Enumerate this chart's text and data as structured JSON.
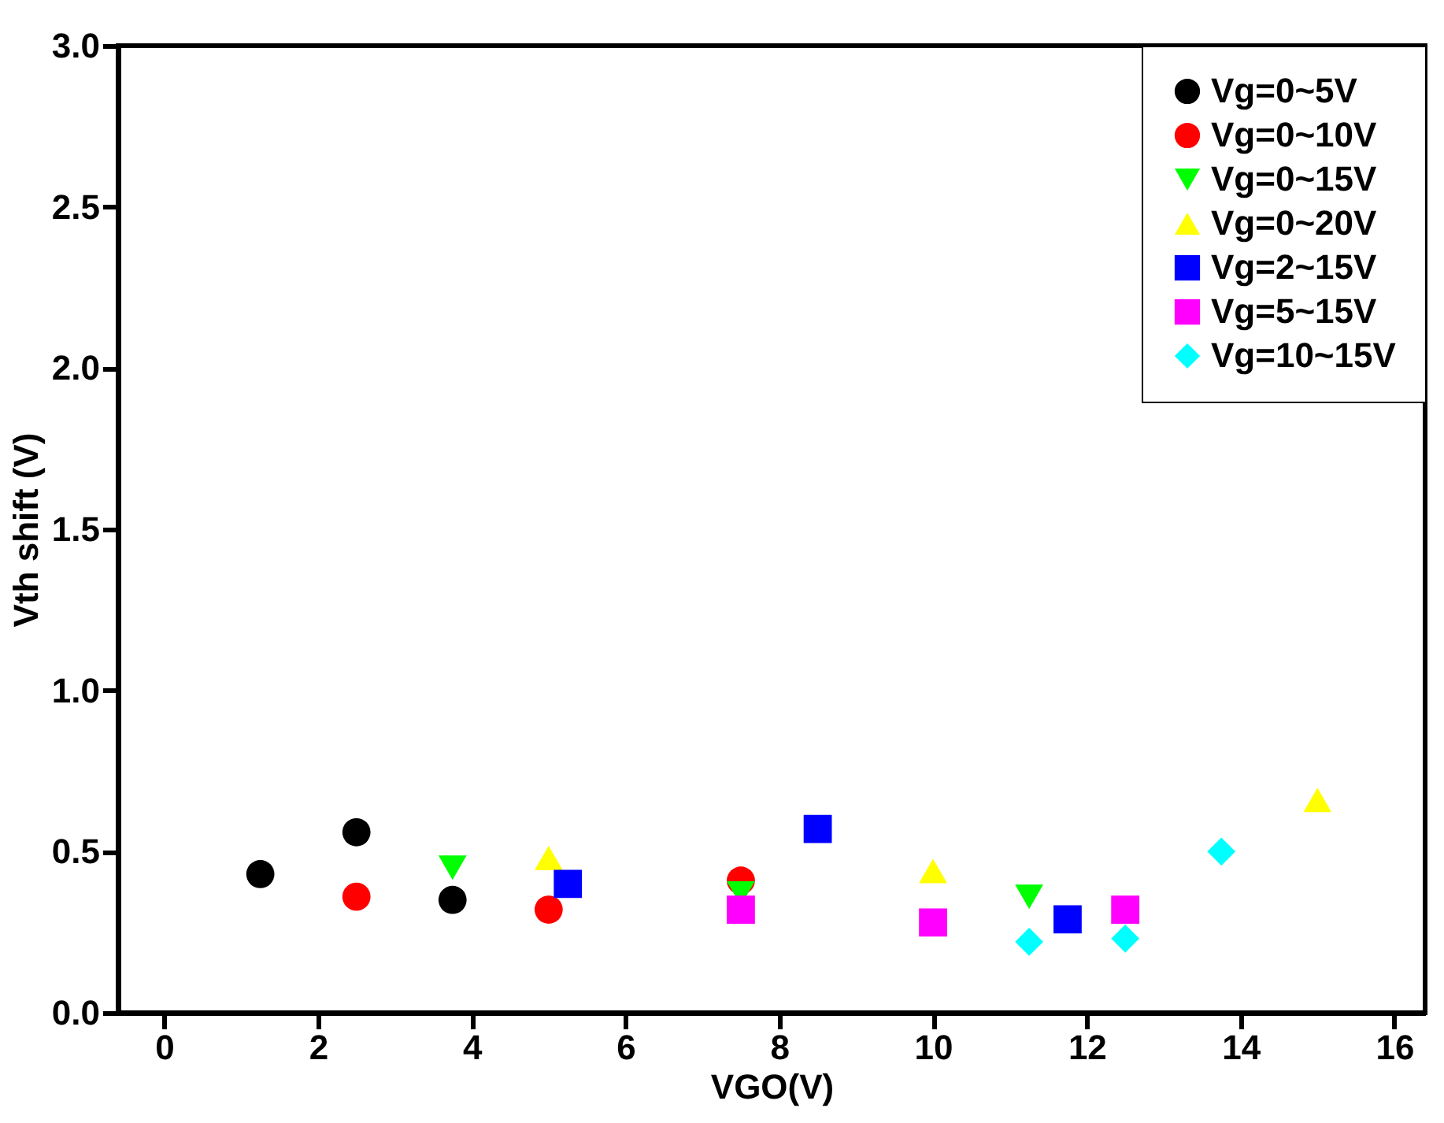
{
  "chart_data": {
    "type": "scatter",
    "xlabel": "VGO(V)",
    "ylabel": "Vth shift (V)",
    "xlim": [
      -0.6,
      16.4
    ],
    "xticks": [
      0,
      2,
      4,
      6,
      8,
      10,
      12,
      14,
      16
    ],
    "ylim": [
      0,
      3
    ],
    "yticks": [
      {
        "value": 0,
        "label": "0.0"
      },
      {
        "value": 0.5,
        "label": "0.5"
      },
      {
        "value": 1,
        "label": "1.0"
      },
      {
        "value": 1.5,
        "label": "1.5"
      },
      {
        "value": 2,
        "label": "2.0"
      },
      {
        "value": 2.5,
        "label": "2.5"
      },
      {
        "value": 3,
        "label": "3.0"
      }
    ],
    "legend": "top right",
    "series": [
      {
        "name": "Vg=0~5V",
        "color": "#000000",
        "marker": "circle",
        "x": [
          1.25,
          2.5,
          3.75
        ],
        "values": [
          0.43,
          0.56,
          0.35
        ]
      },
      {
        "name": "Vg=0~10V",
        "color": "#ff0000",
        "marker": "circle",
        "x": [
          2.5,
          5,
          7.5
        ],
        "values": [
          0.36,
          0.32,
          0.41
        ]
      },
      {
        "name": "Vg=0~15V",
        "color": "#00ff00",
        "marker": "triangle-down",
        "x": [
          3.75,
          7.5,
          11.25
        ],
        "values": [
          0.45,
          0.37,
          0.36
        ]
      },
      {
        "name": "Vg=0~20V",
        "color": "#ffff00",
        "marker": "triangle",
        "x": [
          5,
          10,
          15
        ],
        "values": [
          0.48,
          0.44,
          0.66
        ]
      },
      {
        "name": "Vg=2~15V",
        "color": "#0000ff",
        "marker": "square",
        "x": [
          5.25,
          8.5,
          11.75
        ],
        "values": [
          0.4,
          0.57,
          0.29
        ]
      },
      {
        "name": "Vg=5~15V",
        "color": "#ff00ff",
        "marker": "square",
        "x": [
          7.5,
          10,
          12.5
        ],
        "values": [
          0.32,
          0.28,
          0.32
        ]
      },
      {
        "name": "Vg=10~15V",
        "color": "#00ffff",
        "marker": "diamond",
        "x": [
          11.25,
          12.5,
          13.75
        ],
        "values": [
          0.22,
          0.23,
          0.5
        ]
      }
    ]
  }
}
